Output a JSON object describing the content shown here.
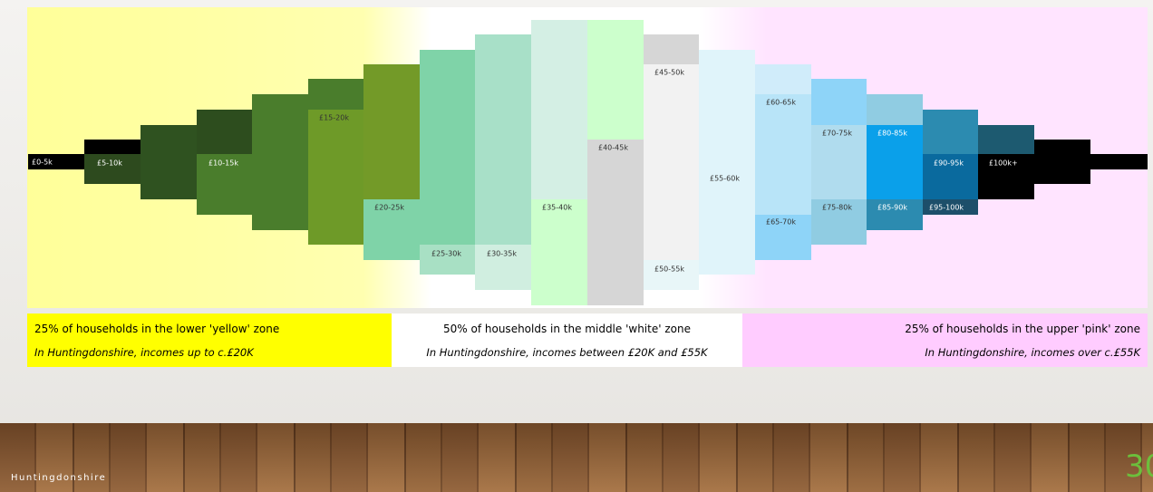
{
  "slide": {
    "bands": [
      "£0-5k",
      "£5-10k",
      "£10-15k",
      "£15-20k",
      "£20-25k",
      "£25-30k",
      "£30-35k",
      "£35-40k",
      "£40-45k",
      "£45-50k",
      "£50-55k",
      "£55-60k",
      "£60-65k",
      "£65-70k",
      "£70-75k",
      "£75-80k",
      "£80-85k",
      "£85-90k",
      "£90-95k",
      "£95-100k",
      "£100k+"
    ],
    "zones": [
      {
        "heading": "25% of households in the lower 'yellow' zone",
        "note": "In Huntingdonshire, incomes up to c.£20K"
      },
      {
        "heading": "50% of households in the middle 'white' zone",
        "note": "In Huntingdonshire, incomes between £20K  and £55K"
      },
      {
        "heading": "25% of households in the upper 'pink' zone",
        "note": "In Huntingdonshire, incomes over c.£55K"
      }
    ],
    "footer": "Huntingdonshire",
    "page_number": "30"
  }
}
